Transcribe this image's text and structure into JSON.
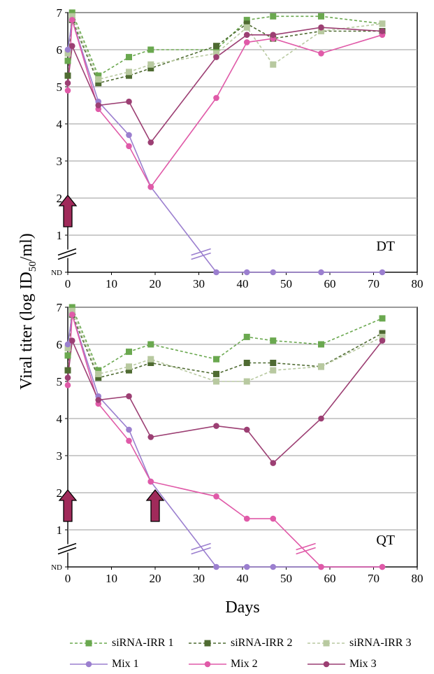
{
  "chart_data": [
    {
      "type": "line",
      "panel_label": "DT",
      "ylabel": "Viral titer (log ID50/ml)",
      "xlabel": "",
      "xlim": [
        0,
        80
      ],
      "ylim": [
        0,
        7
      ],
      "x_ticks": [
        "0",
        "10",
        "20",
        "30",
        "40",
        "50",
        "60",
        "70",
        "80"
      ],
      "y_ticks": [
        "ND",
        "1",
        "2",
        "3",
        "4",
        "5",
        "6",
        "7"
      ],
      "axis_break_y": "between ND and 1",
      "grid": "horizontal",
      "treatment_arrows_days": [
        0
      ],
      "series": [
        {
          "name": "siRNA-IRR 1",
          "x": [
            0,
            1,
            7,
            14,
            19,
            34,
            41,
            47,
            58,
            72
          ],
          "y": [
            5.7,
            7.0,
            5.3,
            5.8,
            6.0,
            6.0,
            6.8,
            6.9,
            6.9,
            6.7
          ]
        },
        {
          "name": "siRNA-IRR 2",
          "x": [
            0,
            1,
            7,
            14,
            19,
            34,
            41,
            47,
            58,
            72
          ],
          "y": [
            5.3,
            6.8,
            5.1,
            5.3,
            5.5,
            6.1,
            6.7,
            6.3,
            6.5,
            6.5
          ]
        },
        {
          "name": "siRNA-IRR 3",
          "x": [
            0,
            1,
            7,
            14,
            19,
            34,
            41,
            47,
            58,
            72
          ],
          "y": [
            5.9,
            6.9,
            5.2,
            5.4,
            5.6,
            5.9,
            6.6,
            5.6,
            6.5,
            6.7
          ]
        },
        {
          "name": "Mix 1",
          "x": [
            0,
            1,
            7,
            14,
            19,
            34,
            41,
            47,
            58,
            72
          ],
          "y": [
            6.0,
            6.8,
            4.6,
            3.7,
            2.3,
            0,
            0,
            0,
            0,
            0
          ]
        },
        {
          "name": "Mix 2",
          "x": [
            0,
            1,
            7,
            14,
            19,
            34,
            41,
            47,
            58,
            72
          ],
          "y": [
            4.9,
            6.8,
            4.4,
            3.4,
            2.3,
            4.7,
            6.2,
            6.3,
            5.9,
            6.4
          ]
        },
        {
          "name": "Mix 3",
          "x": [
            0,
            1,
            7,
            14,
            19,
            34,
            41,
            47,
            58,
            72
          ],
          "y": [
            5.1,
            6.1,
            4.5,
            4.6,
            3.5,
            5.8,
            6.4,
            6.4,
            6.6,
            6.5
          ]
        }
      ]
    },
    {
      "type": "line",
      "panel_label": "QT",
      "ylabel": "Viral titer (log ID50/ml)",
      "xlabel": "Days",
      "xlim": [
        0,
        80
      ],
      "ylim": [
        0,
        7
      ],
      "x_ticks": [
        "0",
        "10",
        "20",
        "30",
        "40",
        "50",
        "60",
        "70",
        "80"
      ],
      "y_ticks": [
        "ND",
        "1",
        "2",
        "3",
        "4",
        "5",
        "6",
        "7"
      ],
      "axis_break_y": "between ND and 1",
      "grid": "horizontal",
      "treatment_arrows_days": [
        0,
        20
      ],
      "series": [
        {
          "name": "siRNA-IRR 1",
          "x": [
            0,
            1,
            7,
            14,
            19,
            34,
            41,
            47,
            58,
            72
          ],
          "y": [
            5.7,
            7.0,
            5.3,
            5.8,
            6.0,
            5.6,
            6.2,
            6.1,
            6.0,
            6.7
          ]
        },
        {
          "name": "siRNA-IRR 2",
          "x": [
            0,
            1,
            7,
            14,
            19,
            34,
            41,
            47,
            58,
            72
          ],
          "y": [
            5.3,
            6.8,
            5.1,
            5.3,
            5.5,
            5.2,
            5.5,
            5.5,
            5.4,
            6.3
          ]
        },
        {
          "name": "siRNA-IRR 3",
          "x": [
            0,
            1,
            7,
            14,
            19,
            34,
            41,
            47,
            58,
            72
          ],
          "y": [
            5.9,
            6.9,
            5.2,
            5.4,
            5.6,
            5.0,
            5.0,
            5.3,
            5.4,
            6.2
          ]
        },
        {
          "name": "Mix 1",
          "x": [
            0,
            1,
            7,
            14,
            19,
            34,
            41,
            47,
            58,
            72
          ],
          "y": [
            6.0,
            6.8,
            4.6,
            3.7,
            2.3,
            0,
            0,
            0,
            0,
            0
          ]
        },
        {
          "name": "Mix 2",
          "x": [
            0,
            1,
            7,
            14,
            19,
            34,
            41,
            47,
            58,
            72
          ],
          "y": [
            4.9,
            6.8,
            4.4,
            3.4,
            2.3,
            1.9,
            1.3,
            1.3,
            0,
            0
          ]
        },
        {
          "name": "Mix 3",
          "x": [
            0,
            1,
            7,
            14,
            19,
            34,
            41,
            47,
            58,
            72
          ],
          "y": [
            5.1,
            6.1,
            4.5,
            4.6,
            3.5,
            3.8,
            3.7,
            2.8,
            4.0,
            6.1
          ]
        }
      ]
    }
  ],
  "ylabel_main": "Viral titer (log ID",
  "ylabel_sub": "50",
  "ylabel_tail": "/ml)",
  "xlabel": "Days",
  "legend": [
    {
      "label": "siRNA-IRR 1",
      "color": "#6aa84f",
      "marker": "square",
      "dash": true
    },
    {
      "label": "siRNA-IRR 2",
      "color": "#4f6b32",
      "marker": "square",
      "dash": true
    },
    {
      "label": "siRNA-IRR 3",
      "color": "#b8c9a0",
      "marker": "square",
      "dash": true
    },
    {
      "label": "Mix 1",
      "color": "#9b7fcf",
      "marker": "circle",
      "dash": false
    },
    {
      "label": "Mix 2",
      "color": "#e05aa8",
      "marker": "circle",
      "dash": false
    },
    {
      "label": "Mix 3",
      "color": "#9c3f73",
      "marker": "circle",
      "dash": false
    }
  ],
  "arrow_color": "#a02a5a"
}
